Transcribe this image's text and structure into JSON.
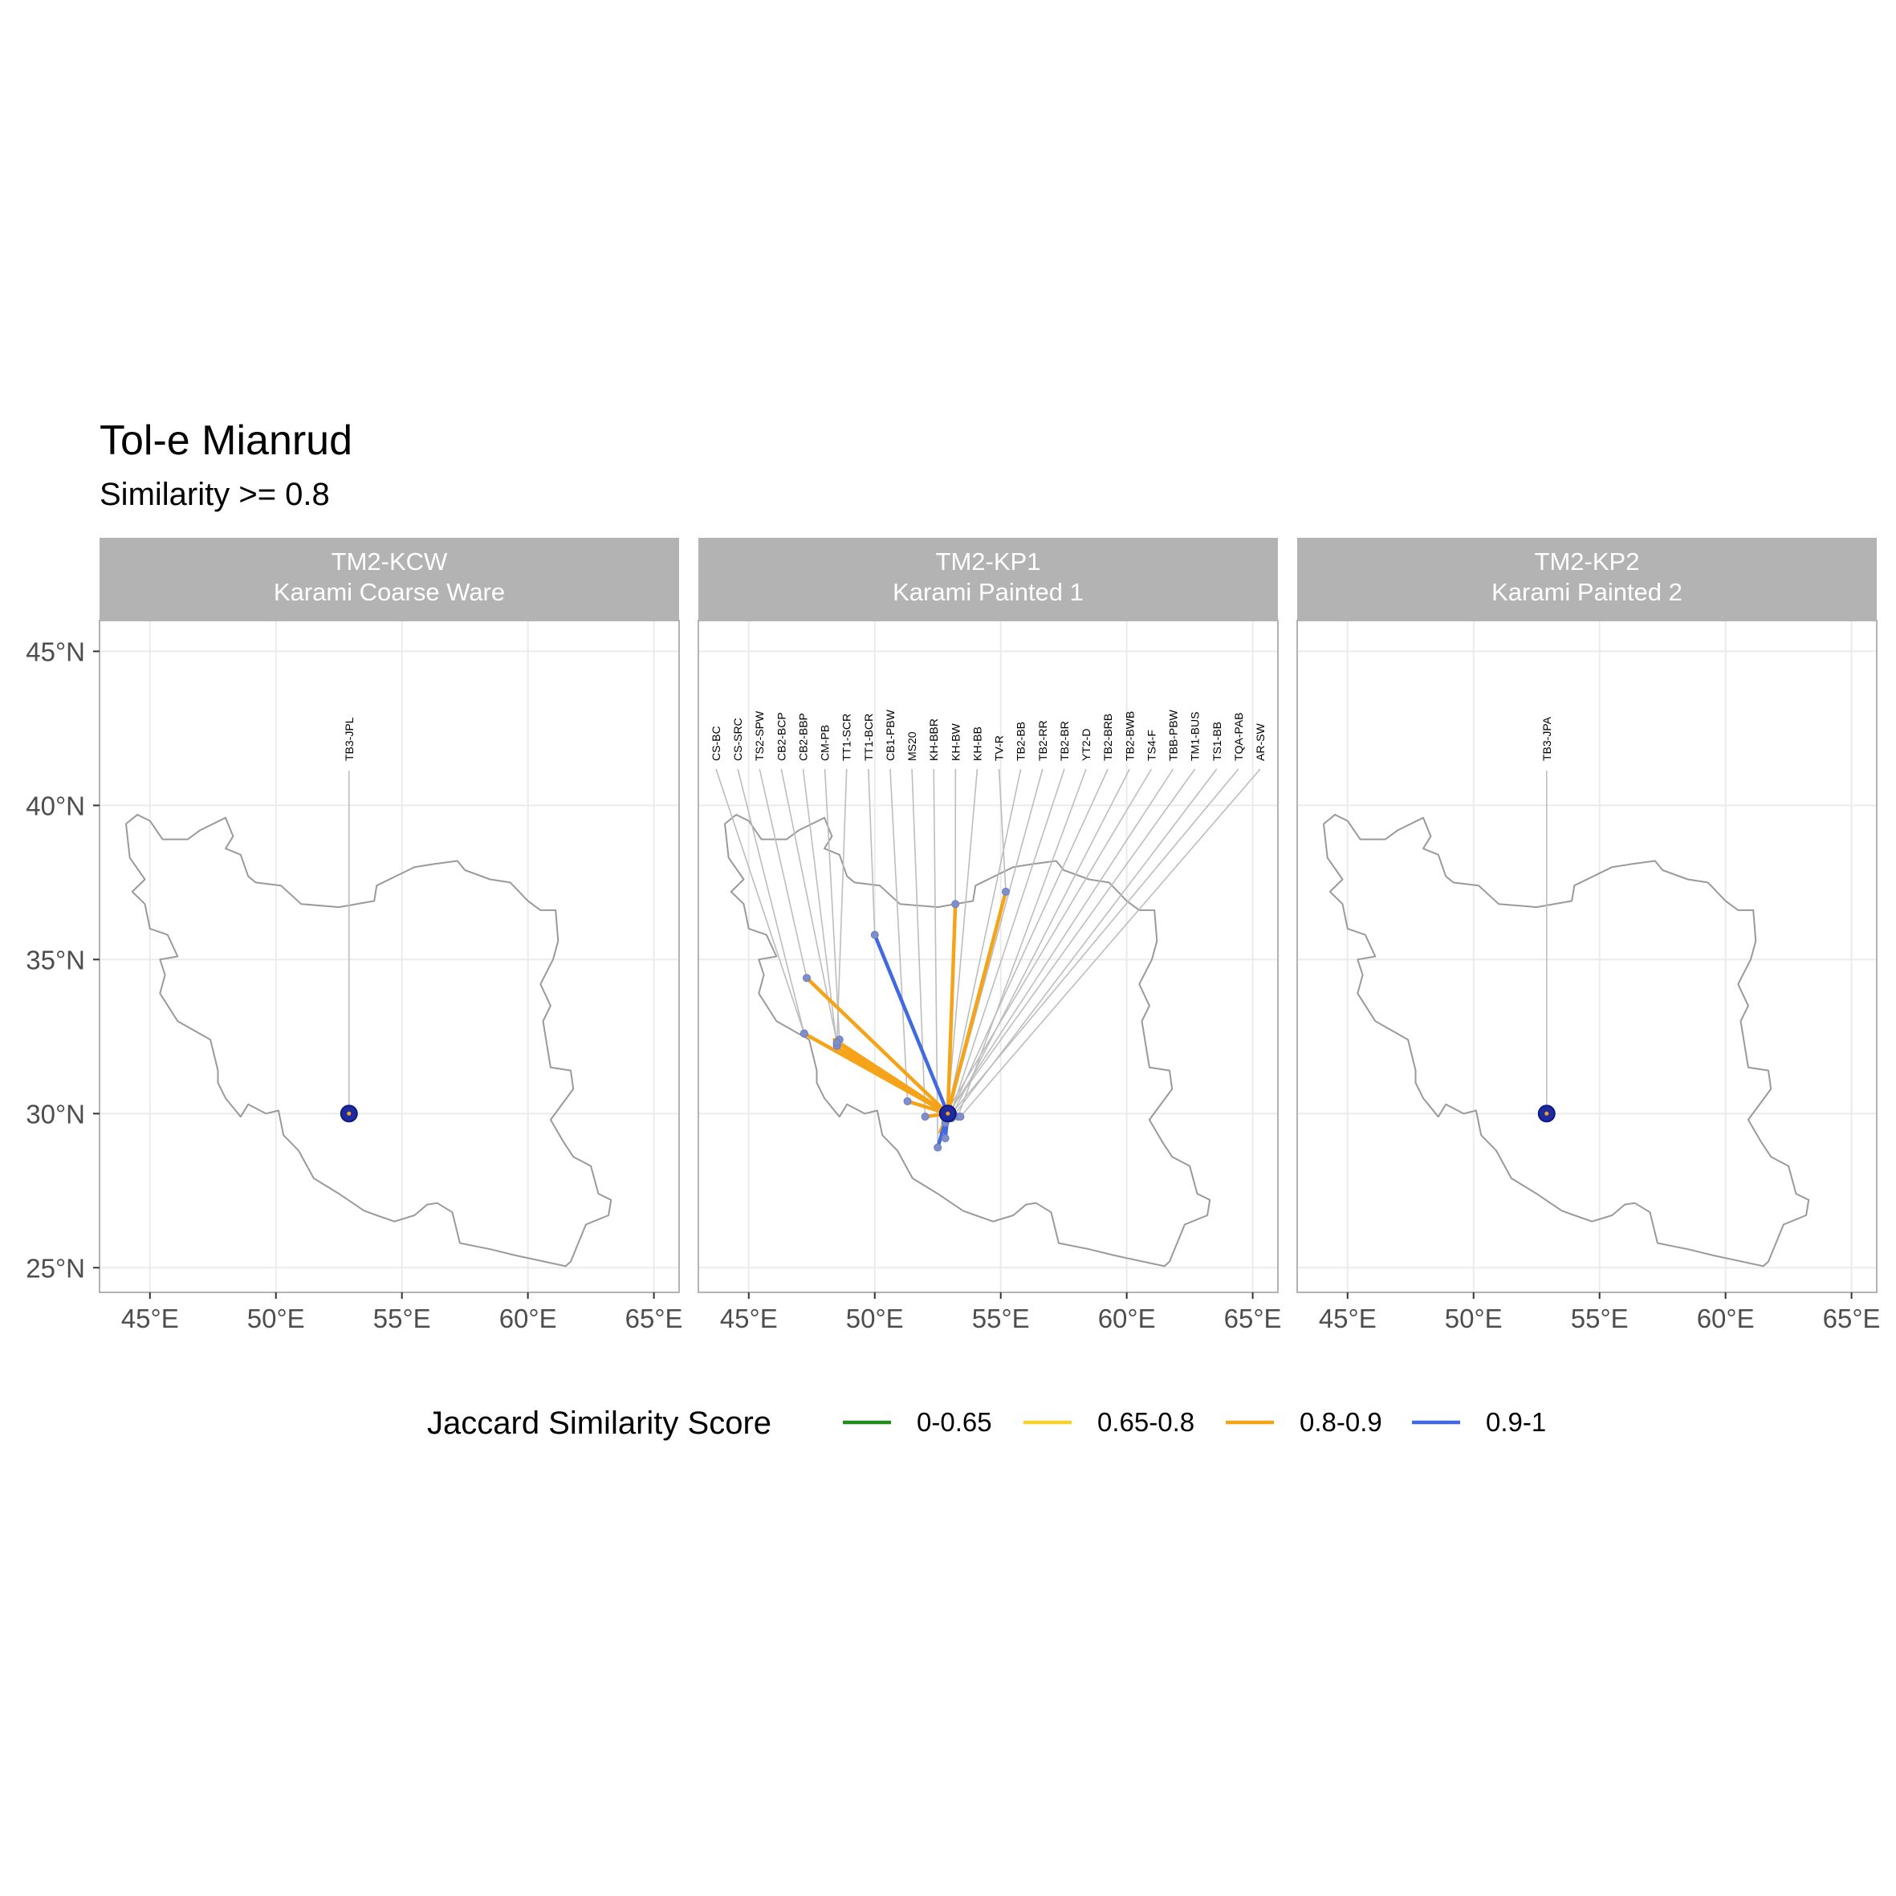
{
  "title": "Tol-e Mianrud",
  "subtitle": "Similarity >= 0.8",
  "legend": {
    "title": "Jaccard Similarity Score",
    "items": [
      {
        "label": "0-0.65",
        "color": "#228B22"
      },
      {
        "label": "0.65-0.8",
        "color": "#F8D12A"
      },
      {
        "label": "0.8-0.9",
        "color": "#F5A318"
      },
      {
        "label": "0.9-1",
        "color": "#4169E1"
      }
    ]
  },
  "axes": {
    "lat_ticks": [
      45,
      40,
      35,
      30,
      25
    ],
    "lat_labels": [
      "45°N",
      "40°N",
      "35°N",
      "30°N",
      "25°N"
    ],
    "lon_ticks": [
      45,
      50,
      55,
      60,
      65
    ],
    "lon_labels": [
      "45°E",
      "50°E",
      "55°E",
      "60°E",
      "65°E"
    ],
    "xlim": [
      43,
      66
    ],
    "ylim": [
      24.2,
      46
    ]
  },
  "chart_data": {
    "type": "map",
    "focal_site": {
      "name": "Tol-e Mianrud",
      "lon": 52.9,
      "lat": 30.0
    },
    "panels": [
      {
        "code": "TM2-KCW",
        "name": "Karami Coarse Ware",
        "sites": [
          {
            "label": "TB3-JPL",
            "lon": 52.9,
            "lat": 30.0,
            "band": "0.9-1"
          }
        ],
        "links": []
      },
      {
        "code": "TM2-KP1",
        "name": "Karami Painted 1",
        "sites": [
          {
            "label": "CS-BC",
            "lon": 47.2,
            "lat": 32.6,
            "band": "0.8-0.9"
          },
          {
            "label": "CS-SRC",
            "lon": 47.2,
            "lat": 32.6,
            "band": "0.8-0.9"
          },
          {
            "label": "TS2-SPW",
            "lon": 47.3,
            "lat": 34.4,
            "band": "0.8-0.9"
          },
          {
            "label": "CB2-BCP",
            "lon": 48.5,
            "lat": 32.3,
            "band": "0.8-0.9"
          },
          {
            "label": "CB2-BBP",
            "lon": 48.5,
            "lat": 32.2,
            "band": "0.8-0.9"
          },
          {
            "label": "CM-PB",
            "lon": 48.6,
            "lat": 32.4,
            "band": "0.8-0.9"
          },
          {
            "label": "TT1-SCR",
            "lon": 48.5,
            "lat": 32.3,
            "band": "0.8-0.9"
          },
          {
            "label": "TT1-BCR",
            "lon": 50.0,
            "lat": 35.8,
            "band": "0.9-1"
          },
          {
            "label": "CB1-PBW",
            "lon": 51.3,
            "lat": 30.4,
            "band": "0.8-0.9"
          },
          {
            "label": "MS20",
            "lon": 52.0,
            "lat": 29.9,
            "band": "0.8-0.9"
          },
          {
            "label": "KH-BBR",
            "lon": 52.5,
            "lat": 28.9,
            "band": "0.9-1"
          },
          {
            "label": "KH-BW",
            "lon": 53.2,
            "lat": 36.8,
            "band": "0.8-0.9"
          },
          {
            "label": "KH-BB",
            "lon": 52.8,
            "lat": 29.2,
            "band": "0.9-1"
          },
          {
            "label": "TV-R",
            "lon": 55.2,
            "lat": 37.2,
            "band": "0.8-0.9"
          },
          {
            "label": "TB2-BB",
            "lon": 52.8,
            "lat": 29.7,
            "band": "0.9-1"
          },
          {
            "label": "TB2-RR",
            "lon": 52.9,
            "lat": 29.9,
            "band": "0.9-1"
          },
          {
            "label": "TB2-BR",
            "lon": 53.0,
            "lat": 29.95,
            "band": "0.9-1"
          },
          {
            "label": "YT2-D",
            "lon": 53.3,
            "lat": 29.9,
            "band": "0.9-1"
          },
          {
            "label": "TB2-BRB",
            "lon": 53.0,
            "lat": 30.0,
            "band": "0.9-1"
          },
          {
            "label": "TB2-BWB",
            "lon": 53.1,
            "lat": 30.0,
            "band": "0.9-1"
          },
          {
            "label": "TS4-F",
            "lon": 52.85,
            "lat": 30.05,
            "band": "0.9-1"
          },
          {
            "label": "TBB-PBW",
            "lon": 53.0,
            "lat": 30.1,
            "band": "0.9-1"
          },
          {
            "label": "TM1-BUS",
            "lon": 52.9,
            "lat": 30.0,
            "band": "0.9-1"
          },
          {
            "label": "TS1-BB",
            "lon": 53.05,
            "lat": 29.85,
            "band": "0.9-1"
          },
          {
            "label": "TQA-PAB",
            "lon": 52.95,
            "lat": 29.9,
            "band": "0.9-1"
          },
          {
            "label": "AR-SW",
            "lon": 53.4,
            "lat": 29.9,
            "band": "0.9-1"
          }
        ],
        "links": [
          {
            "lon": 47.3,
            "lat": 34.4,
            "band": "0.8-0.9"
          },
          {
            "lon": 47.2,
            "lat": 32.6,
            "band": "0.8-0.9"
          },
          {
            "lon": 48.5,
            "lat": 32.3,
            "band": "0.8-0.9"
          },
          {
            "lon": 48.6,
            "lat": 32.1,
            "band": "0.8-0.9"
          },
          {
            "lon": 48.4,
            "lat": 32.4,
            "band": "0.8-0.9"
          },
          {
            "lon": 51.3,
            "lat": 30.4,
            "band": "0.8-0.9"
          },
          {
            "lon": 52.0,
            "lat": 29.9,
            "band": "0.8-0.9"
          },
          {
            "lon": 53.2,
            "lat": 36.8,
            "band": "0.8-0.9"
          },
          {
            "lon": 55.2,
            "lat": 37.2,
            "band": "0.8-0.9"
          },
          {
            "lon": 52.6,
            "lat": 29.4,
            "band": "0.8-0.9"
          },
          {
            "lon": 50.0,
            "lat": 35.8,
            "band": "0.9-1"
          },
          {
            "lon": 52.5,
            "lat": 28.9,
            "band": "0.9-1"
          },
          {
            "lon": 52.8,
            "lat": 29.2,
            "band": "0.9-1"
          },
          {
            "lon": 53.1,
            "lat": 30.0,
            "band": "0.9-1"
          }
        ]
      },
      {
        "code": "TM2-KP2",
        "name": "Karami Painted 2",
        "sites": [
          {
            "label": "TB3-JPA",
            "lon": 52.9,
            "lat": 30.0,
            "band": "0.9-1"
          }
        ],
        "links": []
      }
    ]
  }
}
